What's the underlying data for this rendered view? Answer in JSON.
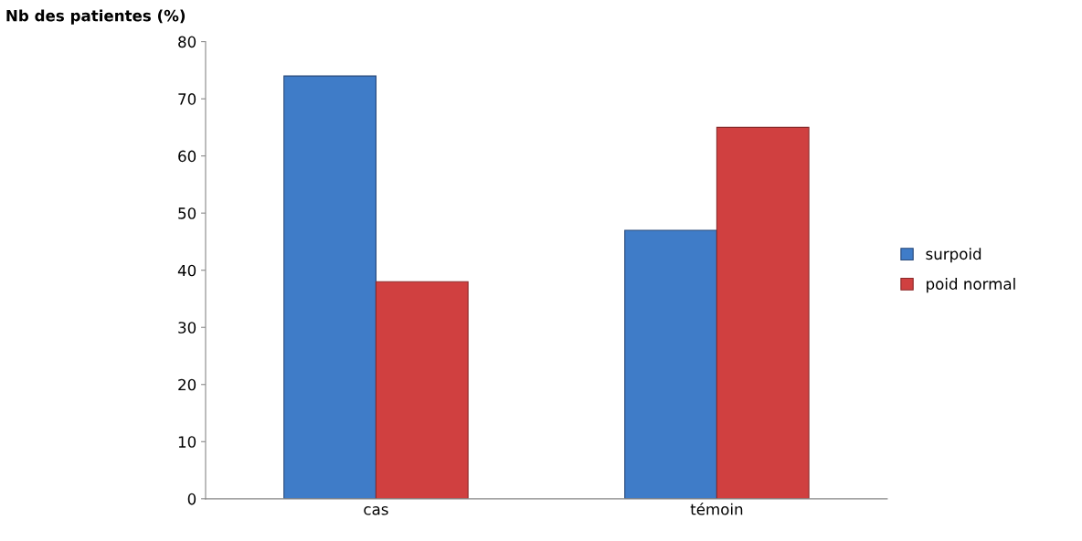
{
  "chart_data": {
    "type": "bar",
    "ylabel": "Nb des patientes (%)",
    "categories": [
      "cas",
      "témoin"
    ],
    "series": [
      {
        "name": "surpoid",
        "color": "#3f7cc8",
        "values": [
          74,
          47
        ]
      },
      {
        "name": "poid normal",
        "color": "#d04040",
        "values": [
          38,
          65
        ]
      }
    ],
    "ylim": [
      0,
      80
    ],
    "yticks": [
      0,
      10,
      20,
      30,
      40,
      50,
      60,
      70,
      80
    ],
    "grid": false,
    "legend": "right"
  }
}
